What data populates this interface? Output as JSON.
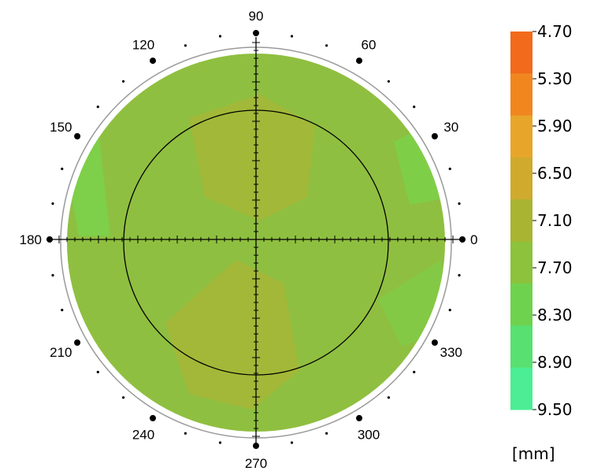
{
  "angle_labels": [
    {
      "text": "0",
      "angle": 0
    },
    {
      "text": "30",
      "angle": 30
    },
    {
      "text": "60",
      "angle": 60
    },
    {
      "text": "90",
      "angle": 90
    },
    {
      "text": "120",
      "angle": 120
    },
    {
      "text": "150",
      "angle": 150
    },
    {
      "text": "180",
      "angle": 180
    },
    {
      "text": "210",
      "angle": 210
    },
    {
      "text": "240",
      "angle": 240
    },
    {
      "text": "270",
      "angle": 270
    },
    {
      "text": "300",
      "angle": 300
    },
    {
      "text": "330",
      "angle": 330
    }
  ],
  "color_scale": {
    "labels": [
      "4.70",
      "5.30",
      "5.90",
      "6.50",
      "7.10",
      "7.70",
      "8.30",
      "8.90",
      "9.50"
    ],
    "colors": [
      "#f26a1b",
      "#f1861f",
      "#e7a62a",
      "#cfaa2d",
      "#a9b432",
      "#8cc23c",
      "#6fd24e",
      "#58e070",
      "#4bee94"
    ],
    "unit": "[mm]"
  },
  "map_colors": {
    "base": "#8fbf40",
    "darker_zone": "#a8b636",
    "lighter_zone": "#7cd04a",
    "rim": "#9a9a9a"
  }
}
